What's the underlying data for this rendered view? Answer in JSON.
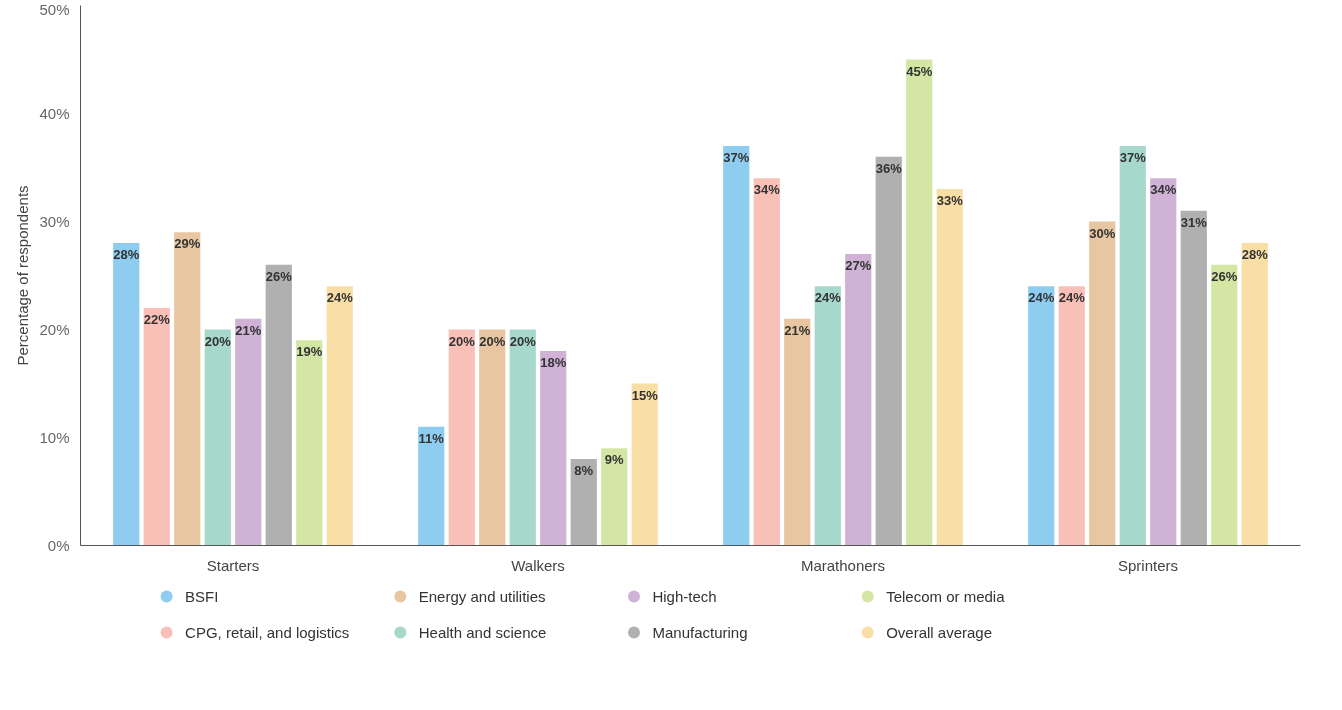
{
  "chart_data": {
    "type": "bar",
    "ylabel": "Percentage of respondents",
    "categories": [
      "Starters",
      "Walkers",
      "Marathoners",
      "Sprinters"
    ],
    "ylim": [
      0,
      50
    ],
    "yticks": [
      {
        "value": 0,
        "label": "0%"
      },
      {
        "value": 10,
        "label": "10%"
      },
      {
        "value": 20,
        "label": "20%"
      },
      {
        "value": 30,
        "label": "30%"
      },
      {
        "value": 40,
        "label": "40%"
      },
      {
        "value": 50,
        "label": "50%"
      }
    ],
    "grid": false,
    "legend": "bottom",
    "series": [
      {
        "name": "BSFI",
        "color": "#8ecdf0",
        "values": [
          28,
          11,
          37,
          24
        ],
        "value_labels": [
          "28%",
          "11%",
          "37%",
          "24%"
        ]
      },
      {
        "name": "CPG, retail, and logistics",
        "color": "#f9c0b8",
        "values": [
          22,
          20,
          34,
          24
        ],
        "value_labels": [
          "22%",
          "20%",
          "34%",
          "24%"
        ]
      },
      {
        "name": "Energy and utilities",
        "color": "#e8c6a2",
        "values": [
          29,
          20,
          21,
          30
        ],
        "value_labels": [
          "29%",
          "20%",
          "21%",
          "30%"
        ]
      },
      {
        "name": "Health and science",
        "color": "#a6d8cc",
        "values": [
          20,
          20,
          24,
          37
        ],
        "value_labels": [
          "20%",
          "20%",
          "24%",
          "37%"
        ]
      },
      {
        "name": "High-tech",
        "color": "#cfb2d6",
        "values": [
          21,
          18,
          27,
          34
        ],
        "value_labels": [
          "21%",
          "18%",
          "27%",
          "34%"
        ]
      },
      {
        "name": "Manufacturing",
        "color": "#b0b0b0",
        "values": [
          26,
          8,
          36,
          31
        ],
        "value_labels": [
          "26%",
          "8%",
          "36%",
          "31%"
        ]
      },
      {
        "name": "Telecom or media",
        "color": "#d4e6a4",
        "values": [
          19,
          9,
          45,
          26
        ],
        "value_labels": [
          "19%",
          "9%",
          "45%",
          "26%"
        ]
      },
      {
        "name": "Overall average",
        "color": "#f9dfa5",
        "values": [
          24,
          15,
          33,
          28
        ],
        "value_labels": [
          "24%",
          "15%",
          "33%",
          "28%"
        ]
      }
    ]
  }
}
